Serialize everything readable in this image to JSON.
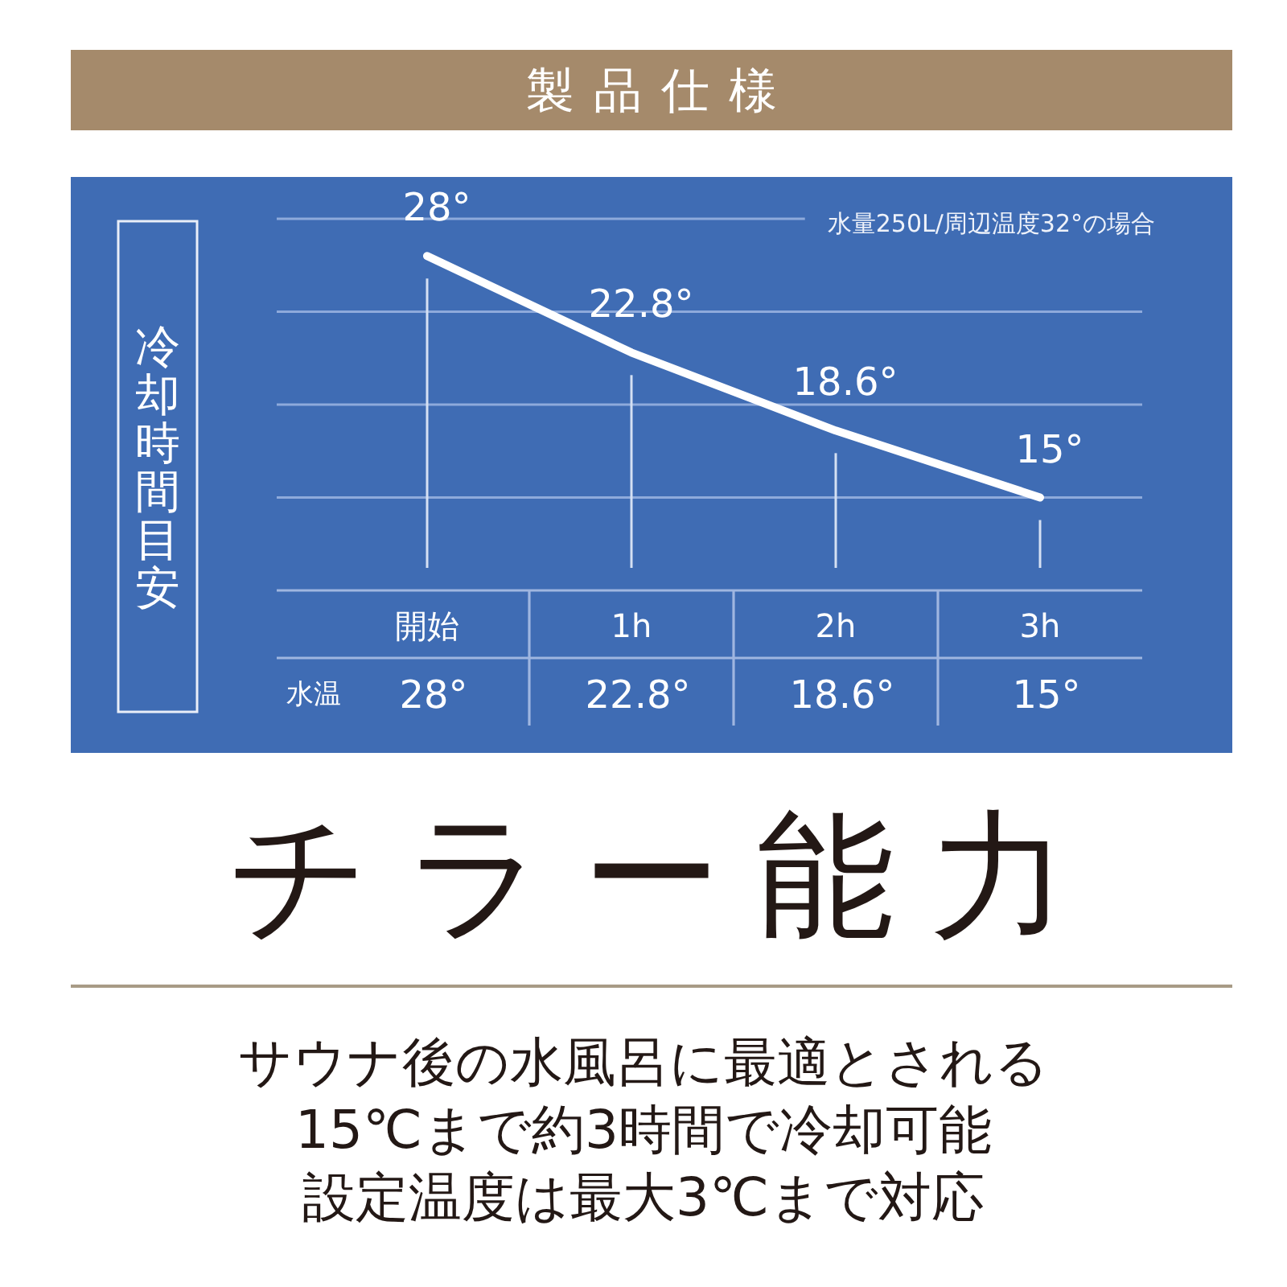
{
  "chart_data": {
    "type": "line",
    "title": "製品仕様",
    "subtitle": "水量250L/周辺温度32°の場合",
    "ylabel": "冷却時間目安",
    "categories": [
      "開始",
      "1h",
      "2h",
      "3h"
    ],
    "series": [
      {
        "name": "水温",
        "color": "#ffffff",
        "values": [
          28,
          22.8,
          18.6,
          15
        ],
        "value_labels": [
          "28°",
          "22.8°",
          "18.6°",
          "15°"
        ]
      }
    ],
    "ylim": [
      10,
      30
    ],
    "yticks": [
      {
        "value": 15,
        "label": null
      },
      {
        "value": 20,
        "label": null
      },
      {
        "value": 25,
        "label": null
      },
      {
        "value": 30,
        "label": null
      }
    ],
    "grid": true,
    "tick_labels": "x",
    "line_style": "solid",
    "annotations": [
      "チラー能力",
      "サウナ後の水風呂に最適とされる",
      "15℃まで約3時間で冷却可能",
      "設定温度は最大3℃まで対応"
    ]
  }
}
